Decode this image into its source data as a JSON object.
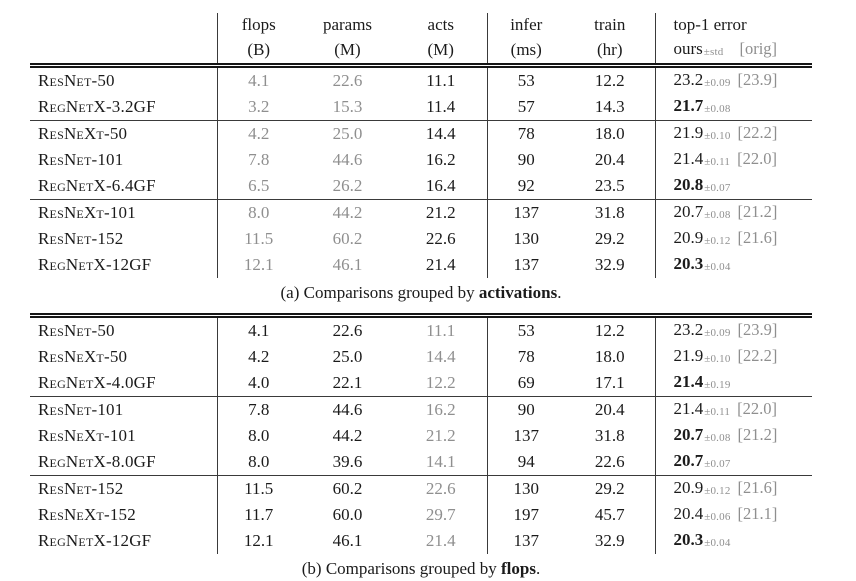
{
  "colors": {
    "text": "#1b1b1b",
    "muted_text": "#8f8f8f",
    "rule": "#3a3a3a",
    "background": "#ffffff"
  },
  "tables": [
    {
      "name": "comparisons-grouped-by-activations",
      "caption": {
        "prefix": "(a) Comparisons grouped by ",
        "bold": "activations",
        "suffix": "."
      },
      "muted_cols": [
        "flops",
        "params"
      ],
      "header": {
        "cols": [
          {
            "key": "flops",
            "top": "flops",
            "bottom": "(B)"
          },
          {
            "key": "params",
            "top": "params",
            "bottom": "(M)"
          },
          {
            "key": "acts",
            "top": "acts",
            "bottom": "(M)"
          },
          {
            "key": "infer",
            "top": "infer",
            "bottom": "(ms)"
          },
          {
            "key": "train",
            "top": "train",
            "bottom": "(hr)"
          }
        ],
        "error": {
          "top": "top-1 error",
          "ours": "ours",
          "std": "±std",
          "orig": "[orig]"
        }
      },
      "groups": [
        {
          "rows": [
            {
              "model": "ResNet-50",
              "flops": "4.1",
              "params": "22.6",
              "acts": "11.1",
              "infer": "53",
              "train": "12.2",
              "err": "23.2",
              "std": "±0.09",
              "orig": "[23.9]",
              "best": false
            },
            {
              "model": "RegNetX-3.2GF",
              "flops": "3.2",
              "params": "15.3",
              "acts": "11.4",
              "infer": "57",
              "train": "14.3",
              "err": "21.7",
              "std": "±0.08",
              "orig": "",
              "best": true
            }
          ]
        },
        {
          "rows": [
            {
              "model": "ResNeXt-50",
              "flops": "4.2",
              "params": "25.0",
              "acts": "14.4",
              "infer": "78",
              "train": "18.0",
              "err": "21.9",
              "std": "±0.10",
              "orig": "[22.2]",
              "best": false
            },
            {
              "model": "ResNet-101",
              "flops": "7.8",
              "params": "44.6",
              "acts": "16.2",
              "infer": "90",
              "train": "20.4",
              "err": "21.4",
              "std": "±0.11",
              "orig": "[22.0]",
              "best": false
            },
            {
              "model": "RegNetX-6.4GF",
              "flops": "6.5",
              "params": "26.2",
              "acts": "16.4",
              "infer": "92",
              "train": "23.5",
              "err": "20.8",
              "std": "±0.07",
              "orig": "",
              "best": true
            }
          ]
        },
        {
          "rows": [
            {
              "model": "ResNeXt-101",
              "flops": "8.0",
              "params": "44.2",
              "acts": "21.2",
              "infer": "137",
              "train": "31.8",
              "err": "20.7",
              "std": "±0.08",
              "orig": "[21.2]",
              "best": false
            },
            {
              "model": "ResNet-152",
              "flops": "11.5",
              "params": "60.2",
              "acts": "22.6",
              "infer": "130",
              "train": "29.2",
              "err": "20.9",
              "std": "±0.12",
              "orig": "[21.6]",
              "best": false
            },
            {
              "model": "RegNetX-12GF",
              "flops": "12.1",
              "params": "46.1",
              "acts": "21.4",
              "infer": "137",
              "train": "32.9",
              "err": "20.3",
              "std": "±0.04",
              "orig": "",
              "best": true
            }
          ]
        }
      ]
    },
    {
      "name": "comparisons-grouped-by-flops",
      "caption": {
        "prefix": "(b) Comparisons grouped by ",
        "bold": "flops",
        "suffix": "."
      },
      "muted_cols": [
        "acts"
      ],
      "groups": [
        {
          "rows": [
            {
              "model": "ResNet-50",
              "flops": "4.1",
              "params": "22.6",
              "acts": "11.1",
              "infer": "53",
              "train": "12.2",
              "err": "23.2",
              "std": "±0.09",
              "orig": "[23.9]",
              "best": false
            },
            {
              "model": "ResNeXt-50",
              "flops": "4.2",
              "params": "25.0",
              "acts": "14.4",
              "infer": "78",
              "train": "18.0",
              "err": "21.9",
              "std": "±0.10",
              "orig": "[22.2]",
              "best": false
            },
            {
              "model": "RegNetX-4.0GF",
              "flops": "4.0",
              "params": "22.1",
              "acts": "12.2",
              "infer": "69",
              "train": "17.1",
              "err": "21.4",
              "std": "±0.19",
              "orig": "",
              "best": true
            }
          ]
        },
        {
          "rows": [
            {
              "model": "ResNet-101",
              "flops": "7.8",
              "params": "44.6",
              "acts": "16.2",
              "infer": "90",
              "train": "20.4",
              "err": "21.4",
              "std": "±0.11",
              "orig": "[22.0]",
              "best": false
            },
            {
              "model": "ResNeXt-101",
              "flops": "8.0",
              "params": "44.2",
              "acts": "21.2",
              "infer": "137",
              "train": "31.8",
              "err": "20.7",
              "std": "±0.08",
              "orig": "[21.2]",
              "best": true
            },
            {
              "model": "RegNetX-8.0GF",
              "flops": "8.0",
              "params": "39.6",
              "acts": "14.1",
              "infer": "94",
              "train": "22.6",
              "err": "20.7",
              "std": "±0.07",
              "orig": "",
              "best": true
            }
          ]
        },
        {
          "rows": [
            {
              "model": "ResNet-152",
              "flops": "11.5",
              "params": "60.2",
              "acts": "22.6",
              "infer": "130",
              "train": "29.2",
              "err": "20.9",
              "std": "±0.12",
              "orig": "[21.6]",
              "best": false
            },
            {
              "model": "ResNeXt-152",
              "flops": "11.7",
              "params": "60.0",
              "acts": "29.7",
              "infer": "197",
              "train": "45.7",
              "err": "20.4",
              "std": "±0.06",
              "orig": "[21.1]",
              "best": false
            },
            {
              "model": "RegNetX-12GF",
              "flops": "12.1",
              "params": "46.1",
              "acts": "21.4",
              "infer": "137",
              "train": "32.9",
              "err": "20.3",
              "std": "±0.04",
              "orig": "",
              "best": true
            }
          ]
        }
      ]
    }
  ]
}
